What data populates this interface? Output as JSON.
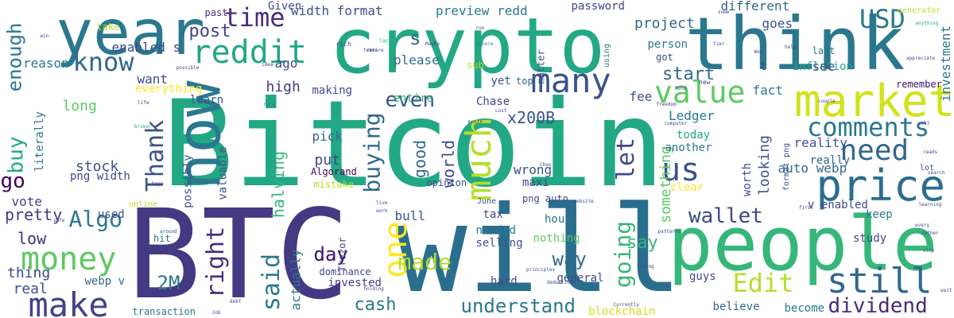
{
  "words": [
    {
      "text": "Bitcoin",
      "color": "#22a884"
    },
    {
      "text": "crypto",
      "color": "#22a884"
    },
    {
      "text": "think",
      "color": "#2a788e"
    },
    {
      "text": "will",
      "color": "#2a6e8e"
    },
    {
      "text": "BTC",
      "color": "#443983"
    },
    {
      "text": "people",
      "color": "#35b779"
    },
    {
      "text": "year",
      "color": "#2a788e"
    },
    {
      "text": "now",
      "color": "#2a788e"
    },
    {
      "text": "market",
      "color": "#d2e21b"
    },
    {
      "text": "price",
      "color": "#2a6e8e"
    },
    {
      "text": "still",
      "color": "#31688e"
    },
    {
      "text": "much",
      "color": "#b5de2b"
    },
    {
      "text": "one",
      "color": "#fde725"
    },
    {
      "text": "reddit",
      "color": "#22a884"
    },
    {
      "text": "make",
      "color": "#414487"
    },
    {
      "text": "money",
      "color": "#5ec962"
    },
    {
      "text": "many",
      "color": "#3b528b"
    },
    {
      "text": "value",
      "color": "#5ec962"
    },
    {
      "text": "comments",
      "color": "#2a788e"
    },
    {
      "text": "need",
      "color": "#31688e"
    },
    {
      "text": "us",
      "color": "#3b528b"
    },
    {
      "text": "know",
      "color": "#31688e"
    },
    {
      "text": "time",
      "color": "#472d7b"
    },
    {
      "text": "USD",
      "color": "#2a788e"
    },
    {
      "text": "Edit",
      "color": "#b5de2b"
    },
    {
      "text": "Thank",
      "color": "#3b528b"
    },
    {
      "text": "buying",
      "color": "#31688e"
    },
    {
      "text": "said",
      "color": "#2a788e"
    },
    {
      "text": "right",
      "color": "#472d7b"
    },
    {
      "text": "let",
      "color": "#3e4989"
    },
    {
      "text": "going",
      "color": "#35b779"
    },
    {
      "text": "made",
      "color": "#b5de2b"
    },
    {
      "text": "wallet",
      "color": "#3e4989"
    },
    {
      "text": "dividend",
      "color": "#472d7b"
    },
    {
      "text": "understand",
      "color": "#2a788e"
    },
    {
      "text": "Algo",
      "color": "#2a788e"
    },
    {
      "text": "even",
      "color": "#3b528b"
    },
    {
      "text": "buy",
      "color": "#22a884"
    },
    {
      "text": "enough",
      "color": "#2a788e"
    },
    {
      "text": "go",
      "color": "#440154"
    },
    {
      "text": "day",
      "color": "#3b0f70"
    },
    {
      "text": "cash",
      "color": "#2a788e"
    },
    {
      "text": "way",
      "color": "#31688e"
    },
    {
      "text": "say",
      "color": "#35b779"
    },
    {
      "text": "2M",
      "color": "#2a788e"
    },
    {
      "text": "pretty",
      "color": "#443983"
    },
    {
      "text": "post",
      "color": "#414487"
    },
    {
      "text": "s",
      "color": "#31688e"
    },
    {
      "text": "start",
      "color": "#31688e"
    },
    {
      "text": "good",
      "color": "#31688e"
    },
    {
      "text": "world",
      "color": "#3e4989"
    },
    {
      "text": "something",
      "color": "#5ec962"
    },
    {
      "text": "halving",
      "color": "#35b779"
    },
    {
      "text": "x200B",
      "color": "#3b528b"
    },
    {
      "text": "project",
      "color": "#31688e"
    },
    {
      "text": "width format",
      "color": "#3b528b"
    },
    {
      "text": "preview redd",
      "color": "#2a788e"
    },
    {
      "text": "password",
      "color": "#414487"
    },
    {
      "text": "different",
      "color": "#31688e"
    },
    {
      "text": "goes",
      "color": "#3b528b"
    },
    {
      "text": "inflation",
      "color": "#22a884"
    },
    {
      "text": "investment",
      "color": "#2a788e"
    },
    {
      "text": "enabled s",
      "color": "#3e4989"
    },
    {
      "text": "Given",
      "color": "#3e4989"
    },
    {
      "text": "past",
      "color": "#472d7b"
    },
    {
      "text": "take",
      "color": "#b5de2b"
    },
    {
      "text": "reason",
      "color": "#2a788e"
    },
    {
      "text": "want",
      "color": "#3e4989"
    },
    {
      "text": "everything",
      "color": "#fde725"
    },
    {
      "text": "high",
      "color": "#443983"
    },
    {
      "text": "please",
      "color": "#31688e"
    },
    {
      "text": "ago",
      "color": "#3e4989"
    },
    {
      "text": "learn",
      "color": "#3b528b"
    },
    {
      "text": "entire",
      "color": "#35b779"
    },
    {
      "text": "Chase",
      "color": "#3e4989"
    },
    {
      "text": "fee",
      "color": "#3b528b"
    },
    {
      "text": "Ledger",
      "color": "#2a788e"
    },
    {
      "text": "today",
      "color": "#22a884"
    },
    {
      "text": "fact",
      "color": "#2a788e"
    },
    {
      "text": "see",
      "color": "#3b528b"
    },
    {
      "text": "remember",
      "color": "#3b0f70"
    },
    {
      "text": "last",
      "color": "#2a788e"
    },
    {
      "text": "long",
      "color": "#5ec962"
    },
    {
      "text": "literally",
      "color": "#2a788e"
    },
    {
      "text": "stock",
      "color": "#3b528b"
    },
    {
      "text": "png width",
      "color": "#3e4989"
    },
    {
      "text": "possibly",
      "color": "#3b528b"
    },
    {
      "text": "valuable",
      "color": "#3b528b"
    },
    {
      "text": "pick",
      "color": "#31688e"
    },
    {
      "text": "put",
      "color": "#3e4989"
    },
    {
      "text": "Algorand",
      "color": "#440154"
    },
    {
      "text": "mistake",
      "color": "#b5de2b"
    },
    {
      "text": "wrong",
      "color": "#3b528b"
    },
    {
      "text": "maxi",
      "color": "#3e4989"
    },
    {
      "text": "png auto",
      "color": "#3e4989"
    },
    {
      "text": "another",
      "color": "#2a788e"
    },
    {
      "text": "worth",
      "color": "#3b528b"
    },
    {
      "text": "looking",
      "color": "#3b528b"
    },
    {
      "text": "format png",
      "color": "#3b528b"
    },
    {
      "text": "auto webp",
      "color": "#31688e"
    },
    {
      "text": "reality",
      "color": "#3b528b"
    },
    {
      "text": "really",
      "color": "#31688e"
    },
    {
      "text": "lot",
      "color": "#3e4989"
    },
    {
      "text": "clear",
      "color": "#fde725"
    },
    {
      "text": "vote",
      "color": "#3e4989"
    },
    {
      "text": "online",
      "color": "#b5de2b"
    },
    {
      "text": "used",
      "color": "#3b528b"
    },
    {
      "text": "low",
      "color": "#472d7b"
    },
    {
      "text": "thing",
      "color": "#3e4989"
    },
    {
      "text": "real",
      "color": "#3b528b"
    },
    {
      "text": "webp v",
      "color": "#31688e"
    },
    {
      "text": "hit",
      "color": "#2a788e"
    },
    {
      "text": "tax",
      "color": "#3e4989"
    },
    {
      "text": "bull",
      "color": "#3b528b"
    },
    {
      "text": "June",
      "color": "#3b528b"
    },
    {
      "text": "hour",
      "color": "#2a788e"
    },
    {
      "text": "nothing",
      "color": "#5ec962"
    },
    {
      "text": "needed",
      "color": "#2a788e"
    },
    {
      "text": "selling",
      "color": "#3b528b"
    },
    {
      "text": "general",
      "color": "#3e4989"
    },
    {
      "text": "hard",
      "color": "#3e4989"
    },
    {
      "text": "invested",
      "color": "#443983"
    },
    {
      "text": "dominance",
      "color": "#3e4989"
    },
    {
      "text": "actually",
      "color": "#2a788e"
    },
    {
      "text": "blockchain",
      "color": "#d2e21b"
    },
    {
      "text": "believe",
      "color": "#31688e"
    },
    {
      "text": "become",
      "color": "#2a788e"
    },
    {
      "text": "v enabled",
      "color": "#3e4989"
    },
    {
      "text": "keep",
      "color": "#2a788e"
    },
    {
      "text": "study",
      "color": "#3e4989"
    },
    {
      "text": "guys",
      "color": "#3e4989"
    },
    {
      "text": "transaction",
      "color": "#2a788e"
    },
    {
      "text": "opinion",
      "color": "#3e4989"
    },
    {
      "text": "top",
      "color": "#31688e"
    },
    {
      "text": "yet",
      "color": "#3b528b"
    },
    {
      "text": "making",
      "color": "#3e4989"
    },
    {
      "text": "person",
      "color": "#2a788e"
    },
    {
      "text": "got",
      "color": "#3b528b"
    },
    {
      "text": "sub",
      "color": "#b5de2b"
    },
    {
      "text": "matter",
      "color": "#3b528b"
    },
    {
      "text": "using",
      "color": "#2a788e"
    },
    {
      "text": "Trezor",
      "color": "#3e4989"
    },
    {
      "text": "generator",
      "color": "#b5de2b"
    },
    {
      "text": "anything",
      "color": "#22a884"
    },
    {
      "text": "new",
      "color": "#3e4989"
    },
    {
      "text": "rich",
      "color": "#3e4989"
    },
    {
      "text": "laptop",
      "color": "#35b779"
    },
    {
      "text": "Maybe",
      "color": "#3e4989"
    },
    {
      "text": "ignore",
      "color": "#2a788e"
    },
    {
      "text": "token",
      "color": "#3e4989"
    },
    {
      "text": "idea",
      "color": "#3e4989"
    },
    {
      "text": "win",
      "color": "#3e4989"
    },
    {
      "text": "rate",
      "color": "#2a788e"
    },
    {
      "text": "broker",
      "color": "#22a884"
    },
    {
      "text": "hope",
      "color": "#3e4989"
    },
    {
      "text": "safe",
      "color": "#3e4989"
    },
    {
      "text": "around",
      "color": "#3e4989"
    },
    {
      "text": "live",
      "color": "#3e4989"
    },
    {
      "text": "work",
      "color": "#3e4989"
    },
    {
      "text": "website",
      "color": "#3e4989"
    },
    {
      "text": "Job",
      "color": "#3e4989"
    },
    {
      "text": "debt",
      "color": "#3e4989"
    },
    {
      "text": "retire",
      "color": "#3e4989"
    },
    {
      "text": "holding",
      "color": "#3e4989"
    },
    {
      "text": "deductions",
      "color": "#3e4989"
    },
    {
      "text": "principles",
      "color": "#3e4989"
    },
    {
      "text": "trying",
      "color": "#3e4989"
    },
    {
      "text": "patterns",
      "color": "#3e4989"
    },
    {
      "text": "Currently",
      "color": "#3e4989"
    },
    {
      "text": "freedom",
      "color": "#3e4989"
    },
    {
      "text": "computer",
      "color": "#3e4989"
    },
    {
      "text": "Lost",
      "color": "#3e4989"
    },
    {
      "text": "month",
      "color": "#3e4989"
    },
    {
      "text": "Choo",
      "color": "#3e4989"
    },
    {
      "text": "some",
      "color": "#3e4989"
    },
    {
      "text": "tier",
      "color": "#3e4989"
    },
    {
      "text": "Woe",
      "color": "#3e4989"
    },
    {
      "text": "help",
      "color": "#3e4989"
    },
    {
      "text": "hold",
      "color": "#3e4989"
    },
    {
      "text": "appreciate",
      "color": "#3e4989"
    },
    {
      "text": "reads",
      "color": "#3e4989"
    },
    {
      "text": "learning",
      "color": "#3e4989"
    },
    {
      "text": "rather",
      "color": "#3e4989"
    },
    {
      "text": "stop",
      "color": "#3e4989"
    },
    {
      "text": "every",
      "color": "#3e4989"
    },
    {
      "text": "search",
      "color": "#3e4989"
    },
    {
      "text": "first",
      "color": "#3e4989"
    },
    {
      "text": "wait",
      "color": "#3e4989"
    },
    {
      "text": "couple",
      "color": "#3e4989"
    },
    {
      "text": "run",
      "color": "#3e4989"
    },
    {
      "text": "possible",
      "color": "#3e4989"
    },
    {
      "text": "life",
      "color": "#3e4989"
    },
    {
      "text": "sell",
      "color": "#3e4989"
    },
    {
      "text": "t",
      "color": "#3e4989"
    }
  ]
}
